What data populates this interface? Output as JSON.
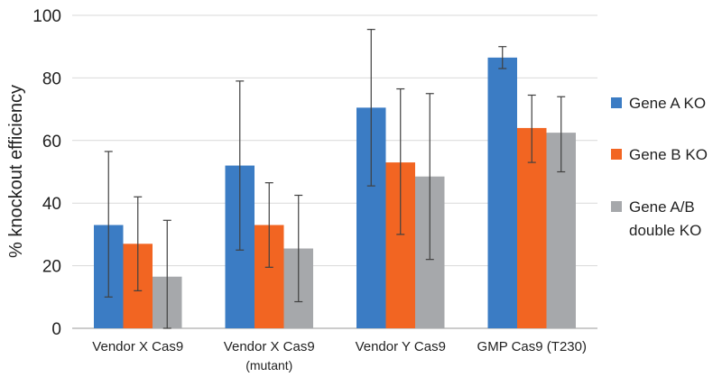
{
  "chart_data": {
    "type": "bar",
    "title": "",
    "xlabel": "",
    "ylabel": "% knockout efficiency",
    "ylim": [
      0,
      100
    ],
    "yticks": [
      0,
      20,
      40,
      60,
      80,
      100
    ],
    "grid": true,
    "legend_position": "right",
    "categories": [
      {
        "label": "Vendor X Cas9",
        "sublabel": ""
      },
      {
        "label": "Vendor X Cas9",
        "sublabel": "(mutant)"
      },
      {
        "label": "Vendor Y Cas9",
        "sublabel": ""
      },
      {
        "label": "GMP Cas9 (T230)",
        "sublabel": ""
      }
    ],
    "series": [
      {
        "name": "Gene A KO",
        "legend_lines": [
          "Gene A KO"
        ],
        "color": "#3b7cc4",
        "values": [
          33,
          52,
          70.5,
          86.5
        ],
        "err_high": [
          56.5,
          79,
          95.5,
          90
        ],
        "err_low": [
          10,
          25,
          45.5,
          83
        ]
      },
      {
        "name": "Gene B KO",
        "legend_lines": [
          "Gene B KO"
        ],
        "color": "#f26522",
        "values": [
          27,
          33,
          53,
          64
        ],
        "err_high": [
          42,
          46.5,
          76.5,
          74.5
        ],
        "err_low": [
          12,
          19.5,
          30,
          53
        ]
      },
      {
        "name": "Gene A/B double KO",
        "legend_lines": [
          "Gene A/B",
          "double KO"
        ],
        "color": "#a6a8ab",
        "values": [
          16.5,
          25.5,
          48.5,
          62.5
        ],
        "err_high": [
          34.5,
          42.5,
          75,
          74
        ],
        "err_low": [
          0,
          8.5,
          22,
          50
        ]
      }
    ]
  }
}
